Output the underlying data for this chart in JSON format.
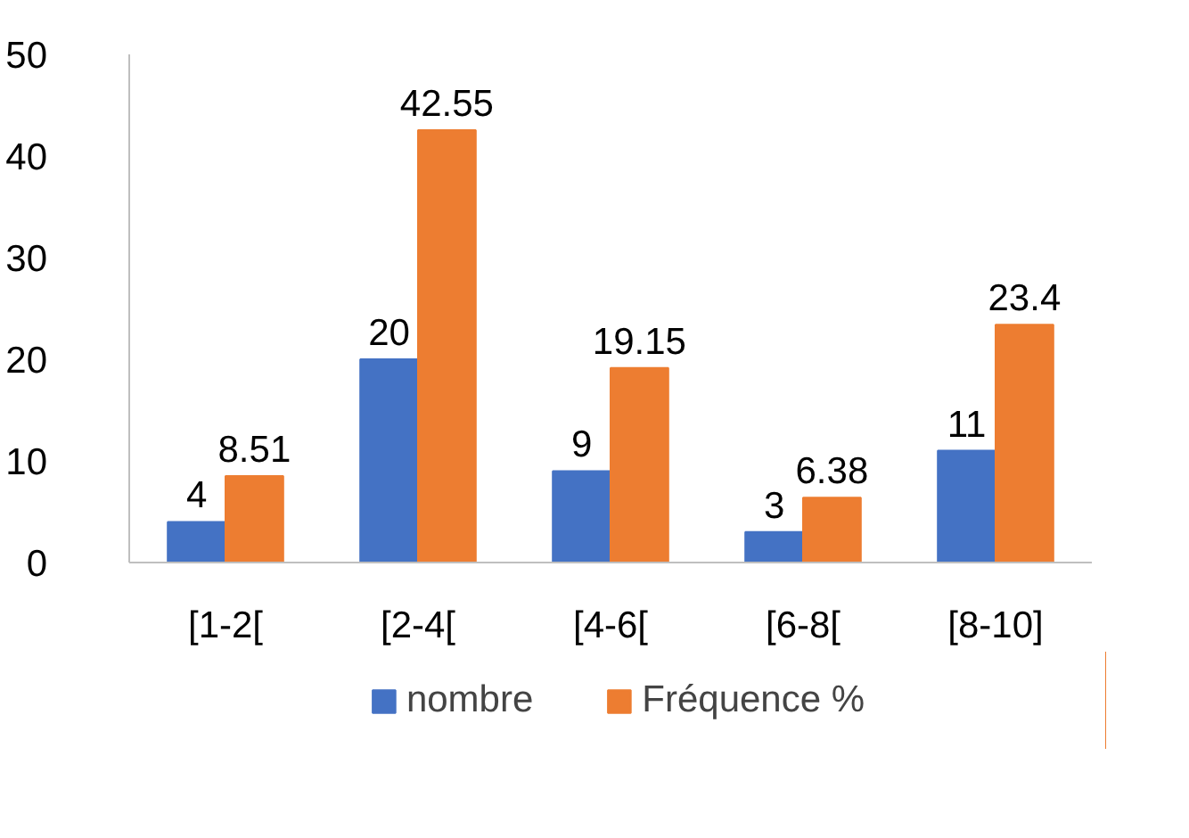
{
  "chart_data": {
    "type": "bar",
    "categories": [
      "[1-2[",
      "[2-4[",
      "[4-6[",
      "[6-8[",
      "[8-10]"
    ],
    "series": [
      {
        "name": "nombre",
        "color": "#4472c4",
        "values": [
          4,
          20,
          9,
          3,
          11
        ]
      },
      {
        "name": "Fréquence %",
        "color": "#ed7d31",
        "values": [
          8.51,
          42.55,
          19.15,
          6.38,
          23.4
        ]
      }
    ],
    "ylim": [
      0,
      50
    ],
    "yticks": [
      0,
      10,
      20,
      30,
      40,
      50
    ],
    "grid": false,
    "legend": "bottom",
    "data_labels": true
  }
}
